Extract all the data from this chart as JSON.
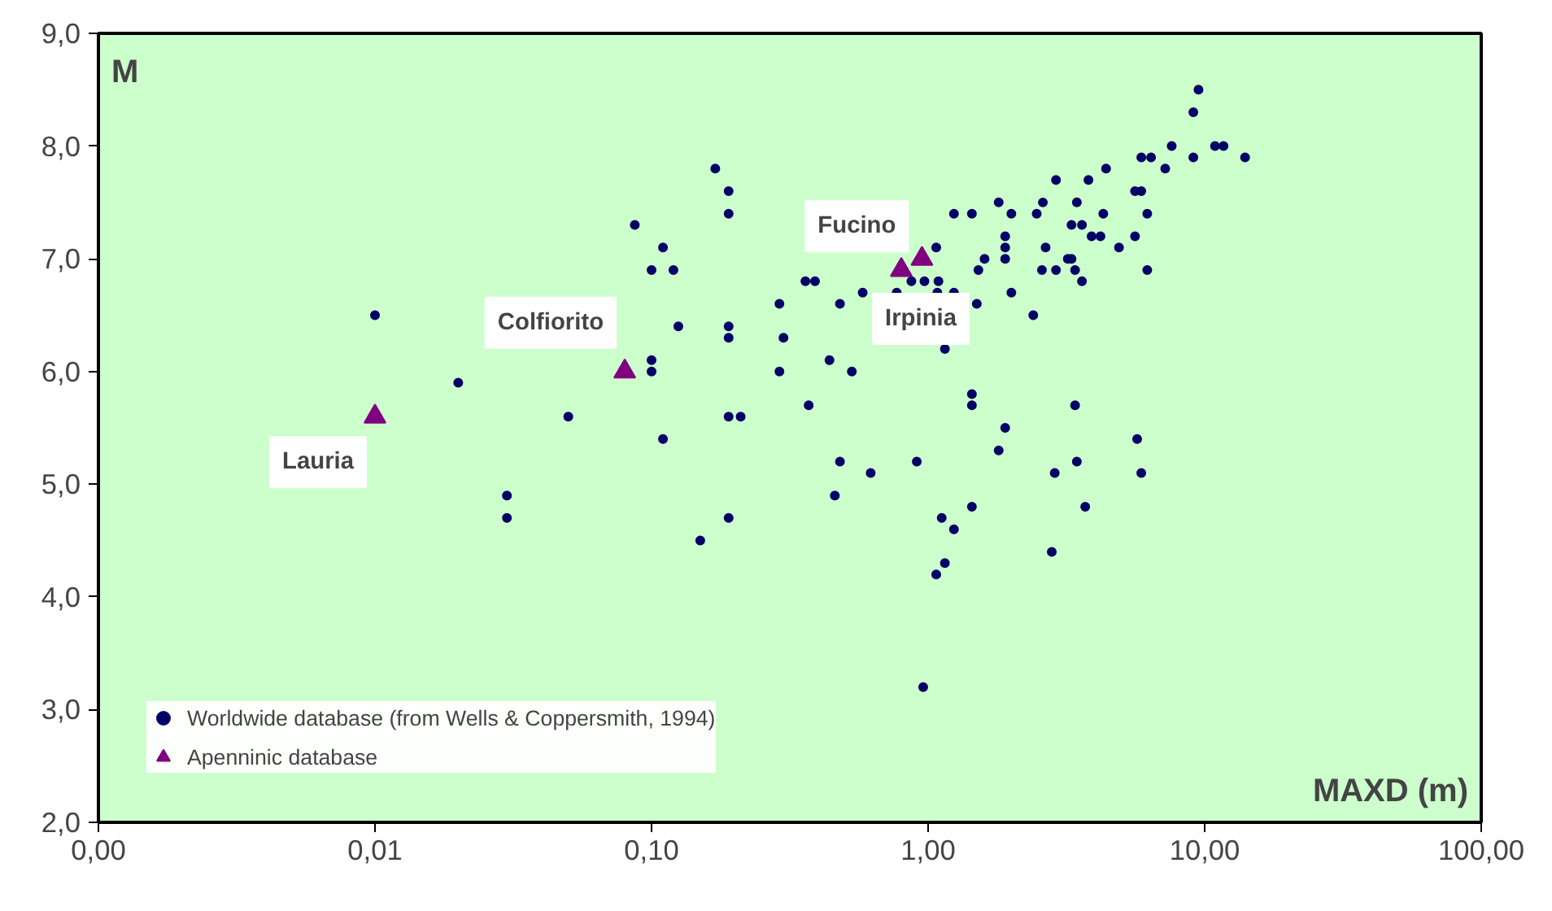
{
  "chart_data": {
    "type": "scatter",
    "xlabel": "MAXD (m)",
    "ylabel": "M",
    "log": "x",
    "grid": false,
    "legend": "bottom left",
    "xlim": [
      0.001,
      100
    ],
    "ylim": [
      2,
      9
    ],
    "xticks": [
      {
        "value": 0.001,
        "label": "0,00"
      },
      {
        "value": 0.01,
        "label": "0,01"
      },
      {
        "value": 0.1,
        "label": "0,10"
      },
      {
        "value": 1,
        "label": "1,00"
      },
      {
        "value": 10,
        "label": "10,00"
      },
      {
        "value": 100,
        "label": "100,00"
      }
    ],
    "yticks": [
      {
        "value": 2,
        "label": "2,0"
      },
      {
        "value": 3,
        "label": "3,0"
      },
      {
        "value": 4,
        "label": "4,0"
      },
      {
        "value": 5,
        "label": "5,0"
      },
      {
        "value": 6,
        "label": "6,0"
      },
      {
        "value": 7,
        "label": "7,0"
      },
      {
        "value": 8,
        "label": "8,0"
      },
      {
        "value": 9,
        "label": "9,0"
      }
    ],
    "series": [
      {
        "name": "Worldwide database (from Wells & Coppersmith, 1994)",
        "color": "#000066",
        "marker": "circle",
        "x": [
          0.01,
          0.02,
          0.05,
          0.03,
          0.03,
          0.15,
          0.087,
          0.11,
          0.1,
          0.12,
          0.125,
          0.1,
          0.1,
          0.11,
          0.17,
          0.19,
          0.19,
          0.19,
          0.19,
          0.19,
          0.21,
          0.19,
          0.29,
          0.3,
          0.29,
          0.36,
          0.37,
          9.5,
          9.1,
          7.6,
          10.9,
          11.7,
          5.9,
          6.4,
          7.2,
          9.1,
          14,
          4.4,
          2.9,
          3.8,
          5.6,
          5.9,
          1.8,
          2.6,
          3.45,
          1.24,
          1.44,
          2.0,
          2.47,
          4.3,
          6.2,
          3.3,
          3.6,
          3.9,
          4.2,
          5.6,
          1.9,
          1.9,
          1.9,
          2.66,
          4.9,
          3.2,
          3.3,
          1.6,
          1.52,
          2.58,
          2.9,
          3.4,
          3.6,
          6.2,
          1.07,
          0.39,
          0.58,
          0.77,
          1.08,
          1.24,
          0.87,
          0.97,
          1.09,
          2.0,
          1.5,
          2.4,
          0.48,
          1.15,
          0.44,
          0.53,
          1.44,
          1.44,
          3.4,
          1.9,
          5.7,
          1.8,
          0.48,
          0.62,
          0.91,
          0.46,
          3.45,
          2.87,
          5.9,
          1.12,
          1.24,
          1.44,
          3.7,
          2.8,
          1.15,
          1.07,
          0.96
        ],
        "values": [
          6.5,
          5.9,
          5.6,
          4.9,
          4.7,
          4.5,
          7.3,
          7.1,
          6.9,
          6.9,
          6.4,
          6.1,
          6.0,
          5.4,
          7.8,
          7.6,
          7.4,
          6.4,
          6.3,
          5.6,
          5.6,
          4.7,
          6.6,
          6.3,
          6.0,
          6.8,
          5.7,
          8.5,
          8.3,
          8.0,
          8.0,
          8.0,
          7.9,
          7.9,
          7.8,
          7.9,
          7.9,
          7.8,
          7.7,
          7.7,
          7.6,
          7.6,
          7.5,
          7.5,
          7.5,
          7.4,
          7.4,
          7.4,
          7.4,
          7.4,
          7.4,
          7.3,
          7.3,
          7.2,
          7.2,
          7.2,
          7.2,
          7.1,
          7.0,
          7.1,
          7.1,
          7.0,
          7.0,
          7.0,
          6.9,
          6.9,
          6.9,
          6.9,
          6.8,
          6.9,
          7.1,
          6.8,
          6.7,
          6.7,
          6.7,
          6.7,
          6.8,
          6.8,
          6.8,
          6.7,
          6.6,
          6.5,
          6.6,
          6.2,
          6.1,
          6.0,
          5.8,
          5.7,
          5.7,
          5.5,
          5.4,
          5.3,
          5.2,
          5.1,
          5.2,
          4.9,
          5.2,
          5.1,
          5.1,
          4.7,
          4.6,
          4.8,
          4.8,
          4.4,
          4.3,
          4.2,
          3.2
        ]
      },
      {
        "name": "Apenninic database",
        "color": "#800080",
        "marker": "triangle",
        "x": [
          0.01,
          0.08,
          0.8,
          0.95
        ],
        "values": [
          5.6,
          6.0,
          6.9,
          7.0
        ]
      }
    ],
    "annotations": [
      {
        "text": "Lauria",
        "x": 0.01,
        "y": 5.6
      },
      {
        "text": "Colfiorito",
        "x": 0.08,
        "y": 6.0
      },
      {
        "text": "Fucino",
        "x": 0.95,
        "y": 7.0
      },
      {
        "text": "Irpinia",
        "x": 0.8,
        "y": 6.9
      }
    ]
  }
}
